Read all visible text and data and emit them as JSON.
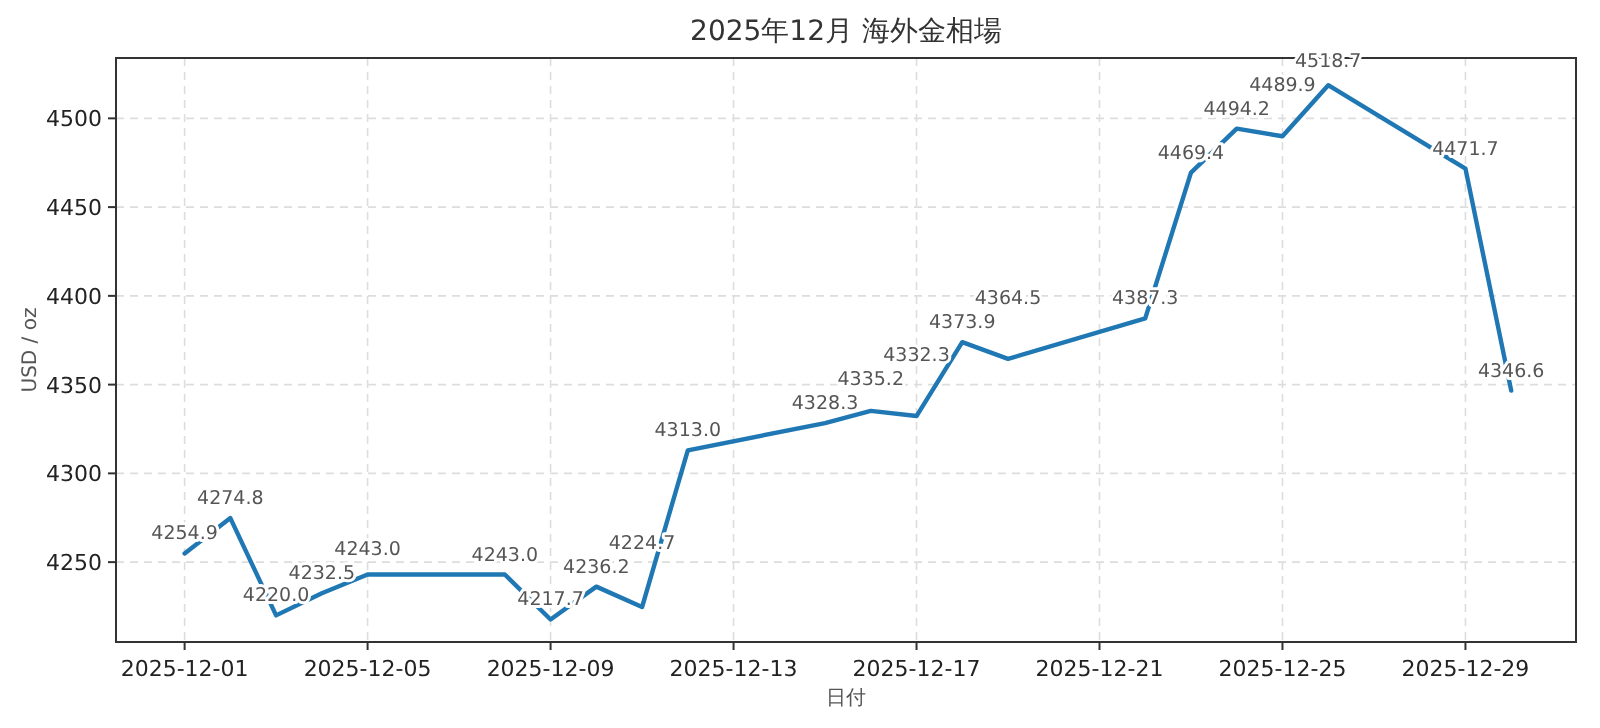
{
  "chart_data": {
    "type": "line",
    "title": "2025年12月 海外金相場",
    "xlabel": "日付",
    "ylabel": "USD / oz",
    "x": [
      "2025-12-01",
      "2025-12-02",
      "2025-12-03",
      "2025-12-04",
      "2025-12-05",
      "2025-12-08",
      "2025-12-09",
      "2025-12-10",
      "2025-12-11",
      "2025-12-12",
      "2025-12-15",
      "2025-12-16",
      "2025-12-17",
      "2025-12-18",
      "2025-12-19",
      "2025-12-22",
      "2025-12-23",
      "2025-12-24",
      "2025-12-25",
      "2025-12-26",
      "2025-12-29",
      "2025-12-30"
    ],
    "series": [
      {
        "color": "#1f77b4",
        "values": [
          4254.9,
          4274.8,
          4220.0,
          4232.5,
          4243.0,
          4243.0,
          4217.7,
          4236.2,
          4224.7,
          4313.0,
          4328.3,
          4335.2,
          4332.3,
          4373.9,
          4364.5,
          4387.3,
          4469.4,
          4494.2,
          4489.9,
          4518.7,
          4471.7,
          4346.6
        ]
      }
    ],
    "value_labels": [
      "4254.9",
      "4274.8",
      "4220.0",
      "4232.5",
      "4243.0",
      "4243.0",
      "4217.7",
      "4236.2",
      "4224.7",
      "4313.0",
      "4328.3",
      "4335.2",
      "4332.3",
      "4373.9",
      "4364.5",
      "4387.3",
      "4469.4",
      "4494.2",
      "4489.9",
      "4518.7",
      "4471.7",
      "4346.6"
    ],
    "xlim": [
      "2025-11-29T12:00",
      "2025-12-31T10:00"
    ],
    "xticks": [
      "2025-12-01",
      "2025-12-05",
      "2025-12-09",
      "2025-12-13",
      "2025-12-17",
      "2025-12-21",
      "2025-12-25",
      "2025-12-29"
    ],
    "ylim": [
      4205,
      4534
    ],
    "yticks": [
      4250,
      4300,
      4350,
      4400,
      4450,
      4500
    ],
    "grid": true,
    "marker": "none",
    "line_style": "solid"
  }
}
